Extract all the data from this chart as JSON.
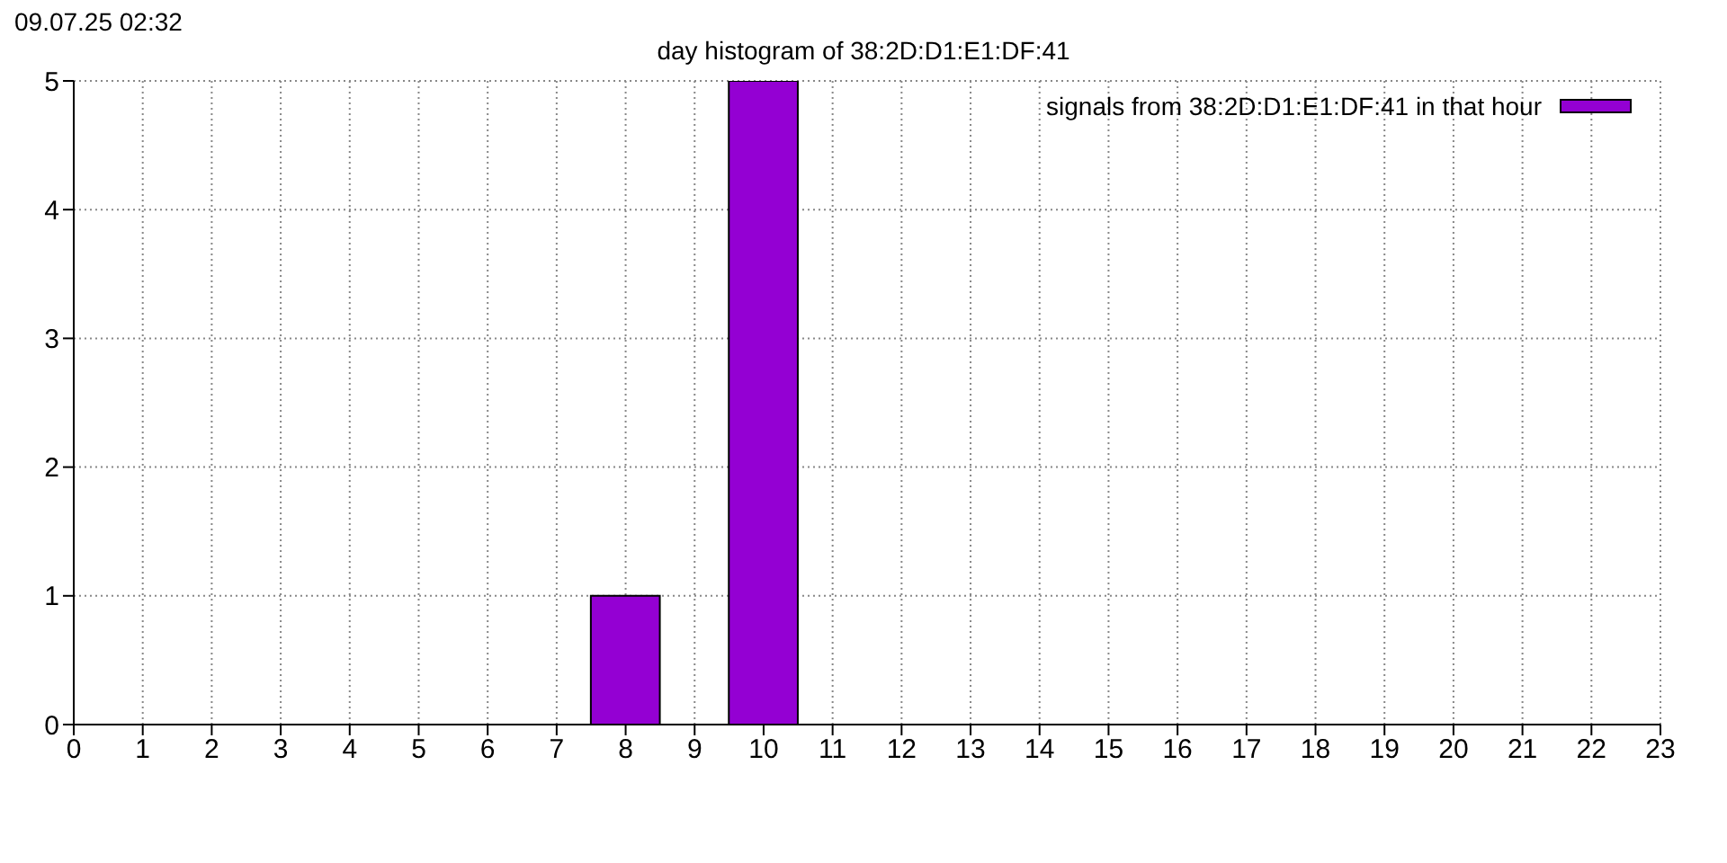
{
  "chart_data": {
    "type": "bar",
    "title": "day histogram of 38:2D:D1:E1:DF:41",
    "annotations": [
      "09.07.25 02:32"
    ],
    "x": [
      8,
      10
    ],
    "series": [
      {
        "name": "signals from 38:2D:D1:E1:DF:41 in that hour",
        "color": "#9400d3",
        "values": [
          1,
          5
        ]
      }
    ],
    "xlim": [
      0,
      23
    ],
    "xticks": [
      0,
      1,
      2,
      3,
      4,
      5,
      6,
      7,
      8,
      9,
      10,
      11,
      12,
      13,
      14,
      15,
      16,
      17,
      18,
      19,
      20,
      21,
      22,
      23
    ],
    "ylim": [
      0,
      5
    ],
    "yticks": [
      0,
      1,
      2,
      3,
      4,
      5
    ],
    "grid": true,
    "legend": "top right"
  }
}
